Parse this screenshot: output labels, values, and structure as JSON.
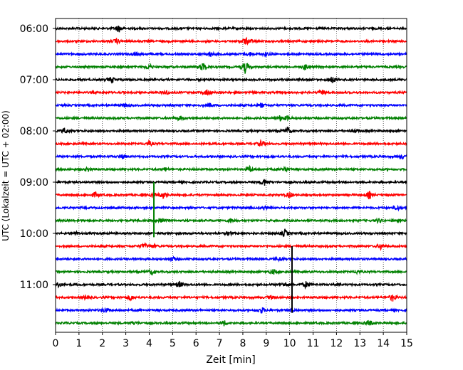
{
  "chart_data": {
    "type": "line",
    "subtype": "seismogram-helicorder",
    "xlabel": "Zeit  [min]",
    "ylabel": "UTC (Lokalzeit = UTC + 02:00)",
    "xlim": [
      0,
      15
    ],
    "x_ticks": [
      "0",
      "1",
      "2",
      "3",
      "4",
      "5",
      "6",
      "7",
      "8",
      "9",
      "10",
      "11",
      "12",
      "13",
      "14",
      "15"
    ],
    "vertical_grid": "dotted",
    "y_tick_labels": [
      "06:00",
      "07:00",
      "08:00",
      "09:00",
      "10:00",
      "11:00"
    ],
    "trace_colors": [
      "#000000",
      "#ff0000",
      "#0000ff",
      "#008000"
    ],
    "trace_start_times": [
      "06:00",
      "06:15",
      "06:30",
      "06:45",
      "07:00",
      "07:15",
      "07:30",
      "07:45",
      "08:00",
      "08:15",
      "08:30",
      "08:45",
      "09:00",
      "09:15",
      "09:30",
      "09:45",
      "10:00",
      "10:15",
      "10:30",
      "10:45",
      "11:00",
      "11:15",
      "11:30",
      "11:45"
    ],
    "spikes": [
      [
        {
          "t": 2.7,
          "a": 0.6
        }
      ],
      [
        {
          "t": 2.6,
          "a": 0.4
        },
        {
          "t": 8.1,
          "a": 0.5
        },
        {
          "t": 8.3,
          "a": 0.3
        }
      ],
      [
        {
          "t": 3.4,
          "a": 0.3
        },
        {
          "t": 6.6,
          "a": 0.4
        },
        {
          "t": 8.3,
          "a": 0.3
        },
        {
          "t": 9.0,
          "a": 0.3
        }
      ],
      [
        {
          "t": 4.0,
          "a": 0.4
        },
        {
          "t": 6.3,
          "a": 0.8
        },
        {
          "t": 8.1,
          "a": 1.0
        },
        {
          "t": 10.7,
          "a": 0.5
        }
      ],
      [
        {
          "t": 2.4,
          "a": 0.5
        },
        {
          "t": 11.8,
          "a": 0.6
        }
      ],
      [
        {
          "t": 4.7,
          "a": 0.4
        },
        {
          "t": 6.5,
          "a": 0.6
        },
        {
          "t": 11.4,
          "a": 0.4
        }
      ],
      [
        {
          "t": 3.0,
          "a": 0.4
        },
        {
          "t": 6.6,
          "a": 0.3
        },
        {
          "t": 8.8,
          "a": 0.3
        }
      ],
      [
        {
          "t": 5.3,
          "a": 0.4
        },
        {
          "t": 9.6,
          "a": 0.4
        },
        {
          "t": 9.9,
          "a": 0.3
        }
      ],
      [
        {
          "t": 0.4,
          "a": 0.5
        },
        {
          "t": 9.9,
          "a": 0.6
        },
        {
          "t": 12.8,
          "a": 0.3
        }
      ],
      [
        {
          "t": 4.0,
          "a": 0.4
        },
        {
          "t": 8.8,
          "a": 0.5
        }
      ],
      [
        {
          "t": 2.9,
          "a": 0.4
        },
        {
          "t": 14.8,
          "a": 0.3
        }
      ],
      [
        {
          "t": 1.4,
          "a": 0.3
        },
        {
          "t": 4.7,
          "a": 0.3
        },
        {
          "t": 8.3,
          "a": 0.5
        },
        {
          "t": 9.8,
          "a": 0.5
        }
      ],
      [
        {
          "t": 8.9,
          "a": 0.6
        }
      ],
      [
        {
          "t": 1.7,
          "a": 0.4
        },
        {
          "t": 4.2,
          "a": 0.3
        },
        {
          "t": 4.6,
          "a": 0.5
        },
        {
          "t": 10.0,
          "a": 0.5
        },
        {
          "t": 13.4,
          "a": 0.6
        }
      ],
      [
        {
          "t": 8.9,
          "a": 0.3
        },
        {
          "t": 14.6,
          "a": 0.4
        }
      ],
      [
        {
          "t": 4.5,
          "a": 0.6
        },
        {
          "t": 7.5,
          "a": 0.3
        },
        {
          "t": 13.8,
          "a": 0.3
        }
      ],
      [
        {
          "t": 0.8,
          "a": 0.3
        },
        {
          "t": 7.4,
          "a": 0.3
        },
        {
          "t": 9.8,
          "a": 0.6
        }
      ],
      [
        {
          "t": 3.8,
          "a": 0.4
        },
        {
          "t": 4.2,
          "a": 0.3
        },
        {
          "t": 13.9,
          "a": 0.5
        }
      ],
      [
        {
          "t": 5.0,
          "a": 0.3
        },
        {
          "t": 9.6,
          "a": 0.3
        }
      ],
      [
        {
          "t": 4.1,
          "a": 0.4
        },
        {
          "t": 9.3,
          "a": 0.4
        },
        {
          "t": 12.9,
          "a": 0.3
        }
      ],
      [
        {
          "t": 0.1,
          "a": 0.5
        },
        {
          "t": 5.3,
          "a": 0.5
        },
        {
          "t": 9.8,
          "a": 0.4
        },
        {
          "t": 10.7,
          "a": 0.5
        }
      ],
      [
        {
          "t": 1.3,
          "a": 0.3
        },
        {
          "t": 3.2,
          "a": 0.5
        },
        {
          "t": 9.2,
          "a": 0.3
        },
        {
          "t": 14.4,
          "a": 0.6
        }
      ],
      [
        {
          "t": 2.1,
          "a": 0.4
        },
        {
          "t": 8.8,
          "a": 0.5
        },
        {
          "t": 10.1,
          "a": 0.4
        }
      ],
      [
        {
          "t": 3.4,
          "a": 0.3
        },
        {
          "t": 7.2,
          "a": 0.4
        },
        {
          "t": 13.4,
          "a": 0.5
        }
      ]
    ],
    "tall_events": [
      {
        "color": "#008000",
        "t": 4.2,
        "from_trace": 12,
        "to_trace": 16.3
      },
      {
        "color": "#000000",
        "t": 10.1,
        "from_trace": 17,
        "to_trace": 22.2
      }
    ]
  }
}
